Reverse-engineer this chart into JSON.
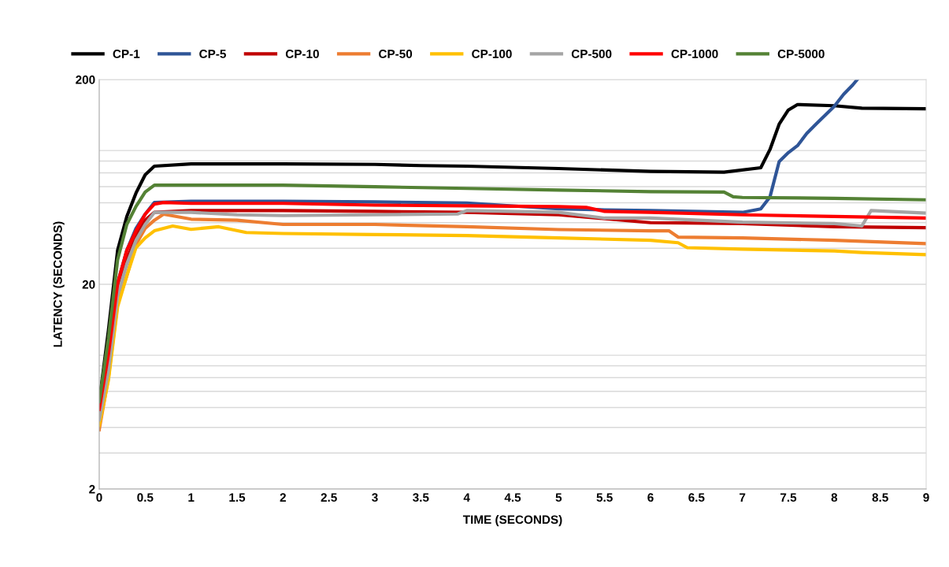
{
  "chart_data": {
    "type": "line",
    "xlabel": "TIME (SECONDS)",
    "ylabel": "LATENCY (SECONDS)",
    "log": "y",
    "grid": "y",
    "legend": "top",
    "line_style": "solid",
    "marker": "none",
    "xlim": [
      0,
      9
    ],
    "xticks": [
      0,
      0.5,
      1,
      1.5,
      2,
      2.5,
      3,
      3.5,
      4,
      4.5,
      5,
      5.5,
      6,
      6.5,
      7,
      7.5,
      8,
      8.5,
      9
    ],
    "ylim": [
      2,
      200
    ],
    "yticks": [
      2,
      20,
      200
    ],
    "series": [
      {
        "name": "CP-1",
        "color": "#000000",
        "x": [
          0,
          0.1,
          0.2,
          0.3,
          0.4,
          0.5,
          0.6,
          1,
          2,
          3,
          3.5,
          4,
          5,
          6,
          6.8,
          7.2,
          7.3,
          7.4,
          7.5,
          7.6,
          8,
          8.3,
          9
        ],
        "values": [
          5.3,
          11.9,
          29.3,
          42.8,
          55.8,
          68.5,
          75.5,
          77.5,
          77.5,
          77,
          76,
          75.5,
          73.5,
          71.2,
          70.6,
          74.2,
          91,
          121,
          142,
          151,
          149,
          145,
          144
        ]
      },
      {
        "name": "CP-5",
        "color": "#2f5597",
        "x": [
          0.2,
          0.3,
          0.4,
          0.5,
          0.6,
          1,
          2,
          3,
          4,
          5,
          5.5,
          6,
          7,
          7.2,
          7.3,
          7.4,
          7.5,
          7.6,
          7.7,
          7.8,
          8,
          8.1,
          8.2,
          8.25
        ],
        "values": [
          20.2,
          29.3,
          37.5,
          44,
          50.2,
          50.9,
          50.9,
          50.5,
          49.9,
          46.7,
          46.2,
          45.8,
          44.9,
          46.7,
          53.4,
          79.5,
          87.9,
          95.1,
          109,
          121,
          148,
          169,
          188,
          200
        ]
      },
      {
        "name": "CP-10",
        "color": "#c00000",
        "x": [
          0,
          0.1,
          0.2,
          0.3,
          0.4,
          0.5,
          0.6,
          1,
          2,
          3,
          4,
          5,
          6,
          7,
          8,
          9
        ],
        "values": [
          4.9,
          8.3,
          18.4,
          26.3,
          34.3,
          41.1,
          44.9,
          45.8,
          45.8,
          45.4,
          44.9,
          43.7,
          40,
          39.6,
          38.2,
          37.8
        ]
      },
      {
        "name": "CP-50",
        "color": "#ed7d31",
        "x": [
          0,
          0.1,
          0.2,
          0.3,
          0.4,
          0.5,
          0.6,
          0.7,
          1,
          1.5,
          2,
          3,
          4,
          5,
          6,
          6.2,
          6.3,
          7,
          8,
          9
        ],
        "values": [
          3.9,
          7,
          16.1,
          22,
          31.3,
          37.5,
          41.1,
          44,
          41.6,
          41.1,
          39.2,
          39.2,
          38.2,
          37,
          36.5,
          36.5,
          34,
          33.7,
          32.8,
          31.6
        ]
      },
      {
        "name": "CP-100",
        "color": "#ffc000",
        "x": [
          0,
          0.1,
          0.2,
          0.3,
          0.4,
          0.5,
          0.6,
          0.8,
          1,
          1.3,
          1.6,
          2,
          3,
          4,
          5,
          6,
          6.3,
          6.4,
          7,
          8,
          8.3,
          9
        ],
        "values": [
          4.1,
          6.8,
          15.5,
          22,
          30.2,
          33.7,
          36.5,
          38.5,
          37.1,
          38.2,
          35.8,
          35.4,
          35,
          34.6,
          33.7,
          32.8,
          31.9,
          30.2,
          29.7,
          29.1,
          28.6,
          27.9
        ]
      },
      {
        "name": "CP-500",
        "color": "#a5a5a5",
        "x": [
          0,
          0.1,
          0.2,
          0.3,
          0.4,
          0.5,
          0.6,
          1,
          1.5,
          2,
          3,
          3.9,
          4,
          5,
          5.5,
          6,
          7,
          8,
          8.3,
          8.4,
          9
        ],
        "values": [
          4.36,
          7.6,
          17.6,
          25.1,
          32.8,
          39.2,
          44.9,
          44.9,
          43.7,
          43.3,
          43.7,
          44.1,
          45.8,
          44.9,
          42.1,
          42.1,
          40.2,
          39.6,
          38.5,
          45.8,
          44.5
        ]
      },
      {
        "name": "CP-1000",
        "color": "#ff0000",
        "x": [
          0,
          0.1,
          0.2,
          0.3,
          0.4,
          0.5,
          0.6,
          0.7,
          1,
          2,
          3,
          4,
          5,
          5.3,
          5.5,
          6,
          7,
          8,
          9
        ],
        "values": [
          4.9,
          9.1,
          20.2,
          29.3,
          36.5,
          44,
          49.3,
          50.2,
          49.7,
          49.7,
          48.7,
          48.3,
          47.9,
          47.5,
          45.4,
          44.9,
          43.7,
          42.9,
          42.1
        ]
      },
      {
        "name": "CP-5000",
        "color": "#548235",
        "x": [
          0,
          0.1,
          0.2,
          0.3,
          0.4,
          0.5,
          0.6,
          1,
          2,
          3,
          4,
          5,
          6,
          6.8,
          6.9,
          7,
          8,
          9
        ],
        "values": [
          5.35,
          10.9,
          26.3,
          39.2,
          48,
          56.4,
          61,
          61,
          61,
          59.9,
          58.8,
          57.7,
          56.7,
          56.4,
          53.5,
          53.1,
          52.6,
          51.7
        ]
      }
    ]
  }
}
